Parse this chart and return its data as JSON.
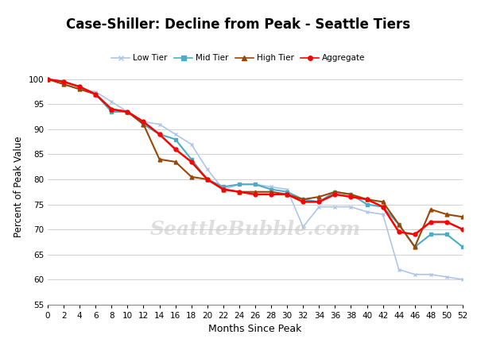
{
  "title": "Case-Shiller: Decline from Peak - Seattle Tiers",
  "xlabel": "Months Since Peak",
  "ylabel": "Percent of Peak Value",
  "watermark": "SeattleBubble.com",
  "xlim": [
    0,
    52
  ],
  "ylim": [
    55,
    102
  ],
  "xticks": [
    0,
    2,
    4,
    6,
    8,
    10,
    12,
    14,
    16,
    18,
    20,
    22,
    24,
    26,
    28,
    30,
    32,
    34,
    36,
    38,
    40,
    42,
    44,
    46,
    48,
    50,
    52
  ],
  "yticks": [
    55,
    60,
    65,
    70,
    75,
    80,
    85,
    90,
    95,
    100
  ],
  "background_color": "#ffffff",
  "grid_color": "#c8c8d0",
  "series": {
    "Low Tier": {
      "color": "#aec6e8",
      "marker": "x",
      "marker_color": "#aec6e8",
      "linewidth": 1.2,
      "x": [
        0,
        2,
        4,
        6,
        8,
        10,
        12,
        14,
        16,
        18,
        20,
        22,
        24,
        26,
        28,
        30,
        32,
        34,
        36,
        38,
        40,
        42,
        44,
        46,
        48,
        50,
        52
      ],
      "y": [
        100,
        99,
        98,
        97.5,
        95.5,
        93.5,
        91.5,
        91,
        89,
        87,
        82,
        78,
        79,
        79,
        78.5,
        78,
        70.5,
        74.5,
        74.5,
        74.5,
        73.5,
        73,
        62,
        61,
        61,
        60.5,
        60
      ]
    },
    "Mid Tier": {
      "color": "#4bacc6",
      "marker": "s",
      "marker_color": "#4bacc6",
      "linewidth": 1.5,
      "x": [
        0,
        2,
        4,
        6,
        8,
        10,
        12,
        14,
        16,
        18,
        20,
        22,
        24,
        26,
        28,
        30,
        32,
        34,
        36,
        38,
        40,
        42,
        44,
        46,
        48,
        50,
        52
      ],
      "y": [
        100,
        99.5,
        98.5,
        97,
        93.5,
        93.5,
        91,
        89,
        88,
        84,
        80,
        78.5,
        79,
        79,
        78,
        77.5,
        76,
        75.5,
        77.5,
        77,
        75,
        74.5,
        71,
        66.5,
        69,
        69,
        66.5
      ]
    },
    "High Tier": {
      "color": "#974706",
      "marker": "^",
      "marker_color": "#974706",
      "linewidth": 1.5,
      "x": [
        0,
        2,
        4,
        6,
        8,
        10,
        12,
        14,
        16,
        18,
        20,
        22,
        24,
        26,
        28,
        30,
        32,
        34,
        36,
        38,
        40,
        42,
        44,
        46,
        48,
        50,
        52
      ],
      "y": [
        100,
        99,
        98,
        97,
        94,
        93.5,
        91,
        84,
        83.5,
        80.5,
        80,
        78,
        77.5,
        77.5,
        77.5,
        77,
        76,
        76.5,
        77.5,
        77,
        76,
        75.5,
        71,
        66.5,
        74,
        73,
        72.5
      ]
    },
    "Aggregate": {
      "color": "#ff0000",
      "marker": "o",
      "marker_color": "#ff0000",
      "linewidth": 1.8,
      "x": [
        0,
        2,
        4,
        6,
        8,
        10,
        12,
        14,
        16,
        18,
        20,
        22,
        24,
        26,
        28,
        30,
        32,
        34,
        36,
        38,
        40,
        42,
        44,
        46,
        48,
        50,
        52
      ],
      "y": [
        100,
        99.5,
        98.5,
        97,
        94,
        93.5,
        91.5,
        89,
        86,
        83.5,
        80,
        78,
        77.5,
        77,
        77,
        77,
        75.5,
        75.5,
        77,
        76.5,
        76,
        74.5,
        69.5,
        69,
        71.5,
        71.5,
        70
      ]
    }
  }
}
